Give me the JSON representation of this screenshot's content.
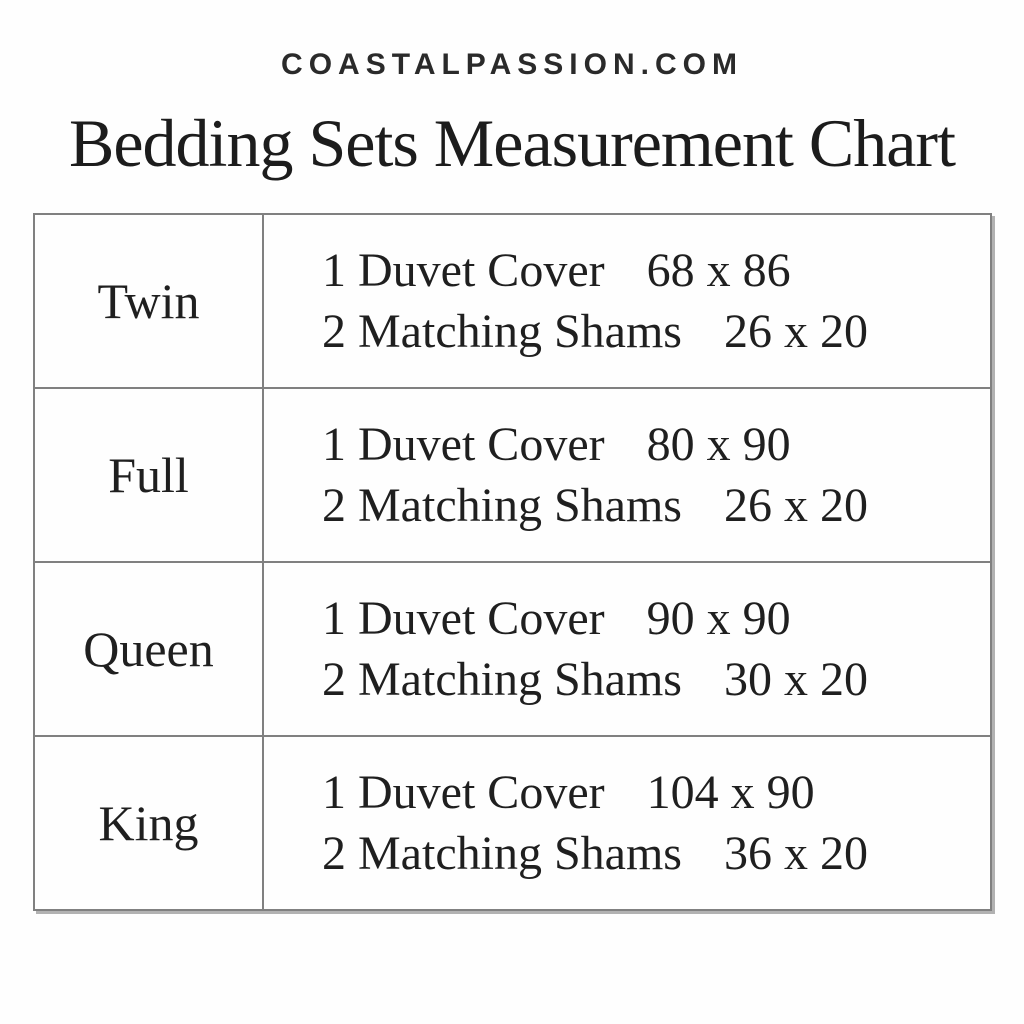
{
  "header": {
    "site": "COASTALPASSION.COM",
    "title": "Bedding Sets Measurement Chart"
  },
  "chart_data": {
    "type": "table",
    "title": "Bedding Sets Measurement Chart",
    "rows": [
      {
        "size": "Twin",
        "items": [
          {
            "name": "1 Duvet Cover",
            "dims": "68 x 86"
          },
          {
            "name": "2 Matching Shams",
            "dims": "26 x 20"
          }
        ]
      },
      {
        "size": "Full",
        "items": [
          {
            "name": "1 Duvet Cover",
            "dims": "80 x 90"
          },
          {
            "name": "2 Matching Shams",
            "dims": "26 x 20"
          }
        ]
      },
      {
        "size": "Queen",
        "items": [
          {
            "name": "1 Duvet Cover",
            "dims": "90 x 90"
          },
          {
            "name": "2 Matching Shams",
            "dims": "30 x 20"
          }
        ]
      },
      {
        "size": "King",
        "items": [
          {
            "name": "1 Duvet Cover",
            "dims": "104 x 90"
          },
          {
            "name": "2 Matching Shams",
            "dims": "36 x 20"
          }
        ]
      }
    ]
  },
  "colors": {
    "background": "#fefefe",
    "border": "#808080",
    "text": "#1f1f1f"
  }
}
